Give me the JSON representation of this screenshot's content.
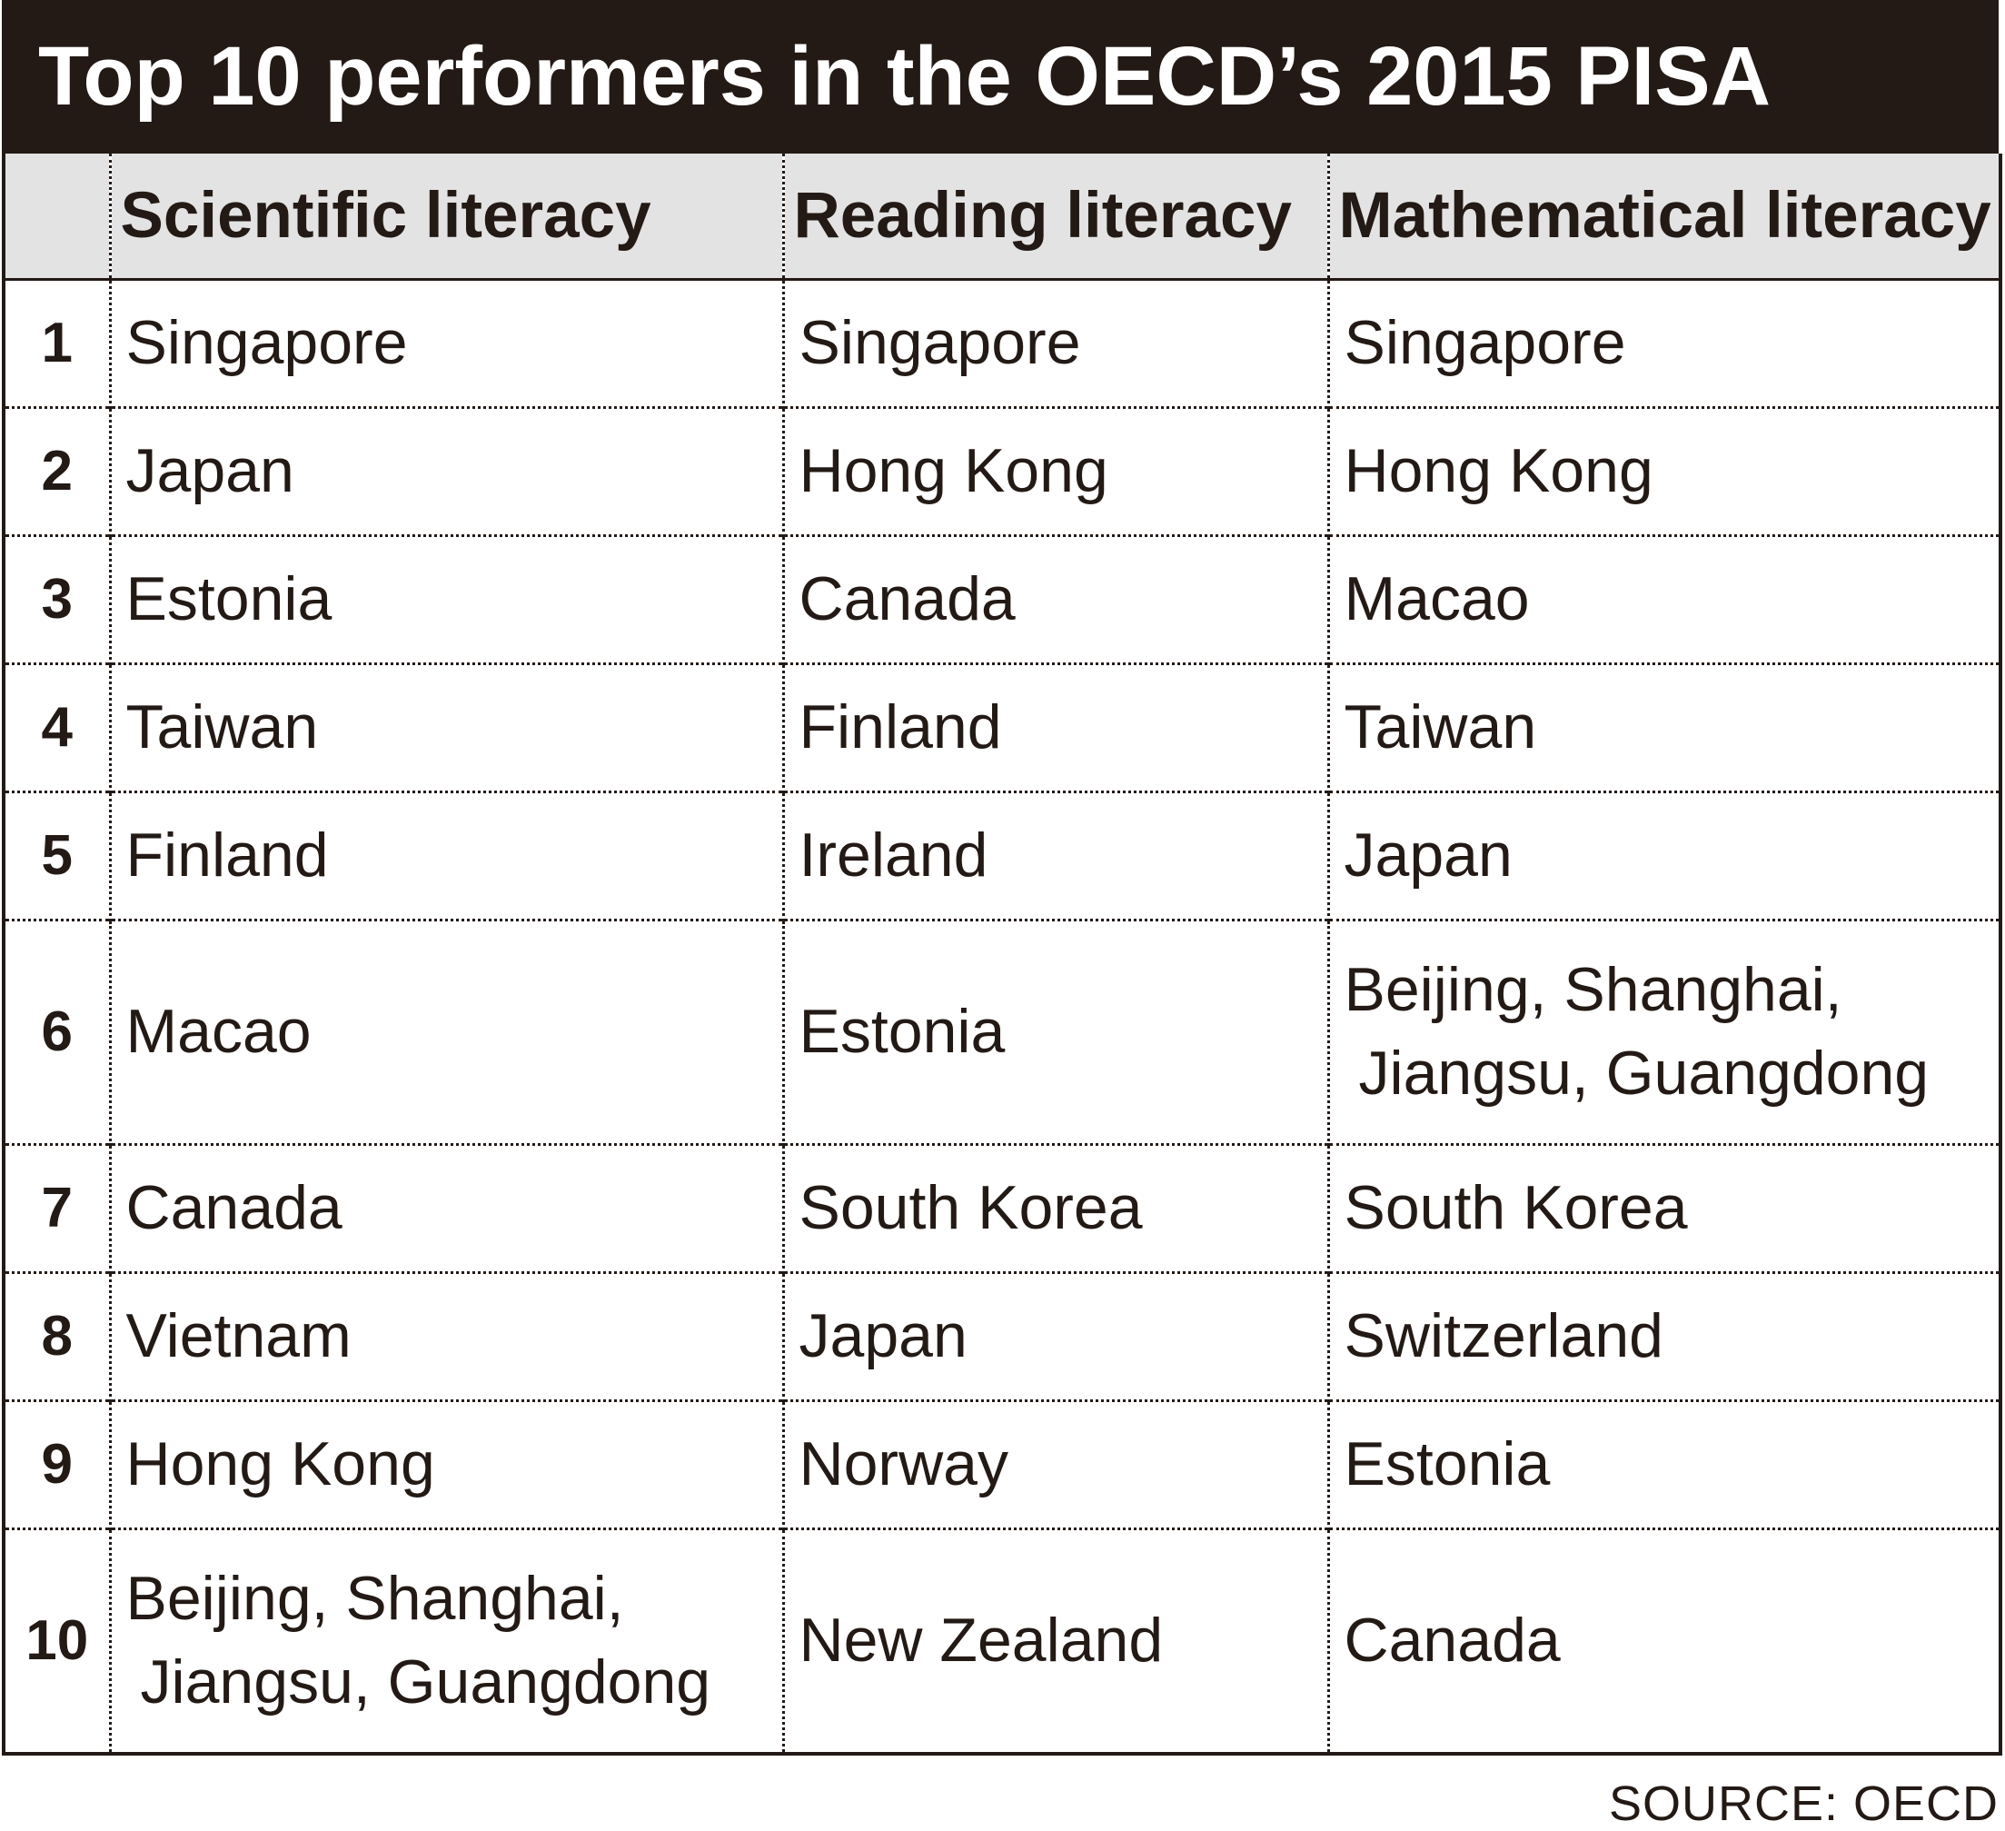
{
  "title": "Top 10 performers in the OECD’s 2015 PISA",
  "source": "SOURCE: OECD",
  "chart_data": {
    "type": "table",
    "title": "Top 10 performers in the OECD’s 2015 PISA",
    "columns": [
      "",
      "Scientific literacy",
      "Reading literacy",
      "Mathematical literacy"
    ],
    "rows": [
      {
        "rank": "1",
        "scientific": "Singapore",
        "reading": "Singapore",
        "mathematical": "Singapore"
      },
      {
        "rank": "2",
        "scientific": "Japan",
        "reading": "Hong Kong",
        "mathematical": "Hong Kong"
      },
      {
        "rank": "3",
        "scientific": "Estonia",
        "reading": "Canada",
        "mathematical": "Macao"
      },
      {
        "rank": "4",
        "scientific": "Taiwan",
        "reading": "Finland",
        "mathematical": "Taiwan"
      },
      {
        "rank": "5",
        "scientific": "Finland",
        "reading": "Ireland",
        "mathematical": "Japan"
      },
      {
        "rank": "6",
        "scientific": "Macao",
        "reading": "Estonia",
        "mathematical": [
          "Beijing, Shanghai,",
          "Jiangsu, Guangdong"
        ]
      },
      {
        "rank": "7",
        "scientific": "Canada",
        "reading": "South Korea",
        "mathematical": "South Korea"
      },
      {
        "rank": "8",
        "scientific": "Vietnam",
        "reading": "Japan",
        "mathematical": "Switzerland"
      },
      {
        "rank": "9",
        "scientific": "Hong Kong",
        "reading": "Norway",
        "mathematical": "Estonia"
      },
      {
        "rank": "10",
        "scientific": [
          "Beijing, Shanghai,",
          "Jiangsu, Guangdong"
        ],
        "reading": "New Zealand",
        "mathematical": "Canada"
      }
    ],
    "source": "SOURCE: OECD"
  },
  "colors": {
    "title_background": "#231a15",
    "title_text": "#ffffff",
    "header_background": "#e3e3e3",
    "text": "#231a15"
  }
}
